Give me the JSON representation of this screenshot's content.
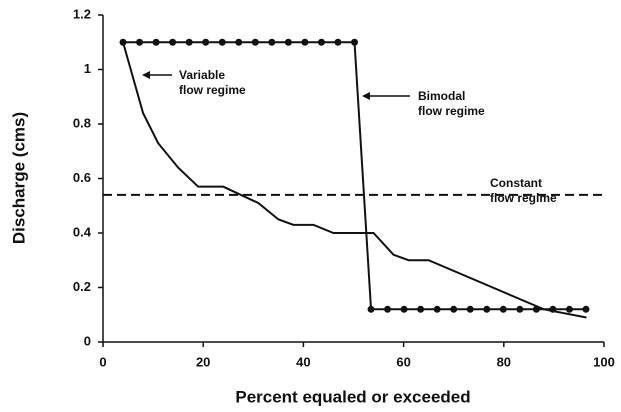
{
  "chart_data": {
    "type": "line",
    "xlabel": "Percent equaled or exceeded",
    "ylabel": "Discharge (cms)",
    "xlim": [
      0,
      100
    ],
    "ylim": [
      0,
      1.2
    ],
    "xticks": [
      0,
      20,
      40,
      60,
      80,
      100
    ],
    "yticks": [
      0,
      0.2,
      0.4,
      0.6,
      0.8,
      1,
      1.2
    ],
    "grid": false,
    "series": [
      {
        "color": "#111111",
        "style": "solid",
        "markers": false,
        "x": [
          4,
          8,
          11,
          15,
          19,
          24,
          31,
          35,
          38,
          42,
          46,
          50,
          54,
          58,
          61,
          65,
          88,
          96.5
        ],
        "values": [
          1.1,
          0.84,
          0.73,
          0.64,
          0.57,
          0.57,
          0.51,
          0.45,
          0.43,
          0.43,
          0.4,
          0.4,
          0.4,
          0.32,
          0.3,
          0.3,
          0.12,
          0.09
        ]
      },
      {
        "color": "#111111",
        "style": "solid",
        "markers": true,
        "x": [
          4,
          7.3,
          10.6,
          13.9,
          17.2,
          20.5,
          23.8,
          27.1,
          30.4,
          33.7,
          37,
          40.3,
          43.6,
          46.9,
          50.2,
          53.5,
          56.8,
          60.1,
          63.4,
          66.7,
          70,
          73.3,
          76.6,
          79.9,
          83.2,
          86.5,
          89.8,
          93.1,
          96.4
        ],
        "values": [
          1.1,
          1.1,
          1.1,
          1.1,
          1.1,
          1.1,
          1.1,
          1.1,
          1.1,
          1.1,
          1.1,
          1.1,
          1.1,
          1.1,
          1.1,
          0.12,
          0.12,
          0.12,
          0.12,
          0.12,
          0.12,
          0.12,
          0.12,
          0.12,
          0.12,
          0.12,
          0.12,
          0.12,
          0.12
        ]
      },
      {
        "color": "#111111",
        "style": "dashed",
        "markers": false,
        "x": [
          0,
          100
        ],
        "values": [
          0.54,
          0.54
        ]
      }
    ],
    "annotations": [
      {
        "lines": [
          "Variable",
          "flow regime"
        ]
      },
      {
        "lines": [
          "Bimodal",
          "flow regime"
        ]
      },
      {
        "lines": [
          "Constant",
          "flow regime"
        ]
      }
    ]
  }
}
